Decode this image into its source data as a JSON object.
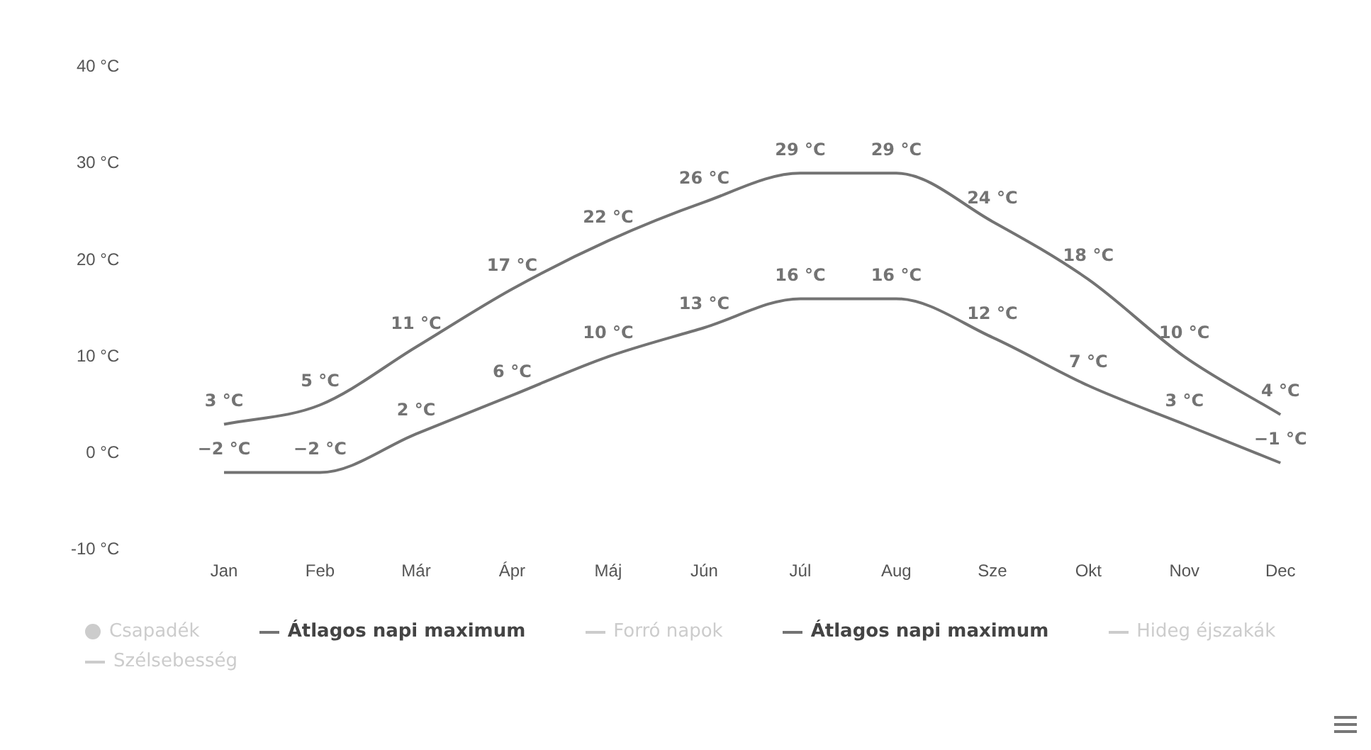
{
  "chart_data": {
    "type": "line",
    "categories": [
      "Jan",
      "Feb",
      "Már",
      "Ápr",
      "Máj",
      "Jún",
      "Júl",
      "Aug",
      "Sze",
      "Okt",
      "Nov",
      "Dec"
    ],
    "series": [
      {
        "name": "Csapadék",
        "type": "bar",
        "values": [
          null,
          null,
          null,
          null,
          null,
          null,
          null,
          null,
          null,
          null,
          null,
          null
        ]
      },
      {
        "name": "Átlagos napi maximum",
        "color": "#737373",
        "values": [
          3,
          5,
          11,
          17,
          22,
          26,
          29,
          29,
          24,
          18,
          10,
          4
        ],
        "value_labels": [
          "3 °C",
          "5 °C",
          "11 °C",
          "17 °C",
          "22 °C",
          "26 °C",
          "29 °C",
          "29 °C",
          "24 °C",
          "18 °C",
          "10 °C",
          "4 °C"
        ]
      },
      {
        "name": "Forró napok",
        "values": [
          null,
          null,
          null,
          null,
          null,
          null,
          null,
          null,
          null,
          null,
          null,
          null
        ]
      },
      {
        "name": "Átlagos napi maximum",
        "color": "#737373",
        "values": [
          -2,
          -2,
          2,
          6,
          10,
          13,
          16,
          16,
          12,
          7,
          3,
          -1
        ],
        "value_labels": [
          "−2 °C",
          "−2 °C",
          "2 °C",
          "6 °C",
          "10 °C",
          "13 °C",
          "16 °C",
          "16 °C",
          "12 °C",
          "7 °C",
          "3 °C",
          "−1 °C"
        ]
      },
      {
        "name": "Hideg éjszakák",
        "values": [
          null,
          null,
          null,
          null,
          null,
          null,
          null,
          null,
          null,
          null,
          null,
          null
        ]
      },
      {
        "name": "Szélsebesség",
        "values": [
          null,
          null,
          null,
          null,
          null,
          null,
          null,
          null,
          null,
          null,
          null,
          null
        ]
      }
    ],
    "ylim": [
      -10,
      40
    ],
    "yticks": [
      {
        "value": -10,
        "label": "-10 °C"
      },
      {
        "value": 0,
        "label": "0 °C"
      },
      {
        "value": 10,
        "label": "10 °C"
      },
      {
        "value": 20,
        "label": "20 °C"
      },
      {
        "value": 30,
        "label": "30 °C"
      },
      {
        "value": 40,
        "label": "40 °C"
      }
    ],
    "grid": false,
    "legend": "bottom",
    "marker": "none",
    "line_style": "solid"
  }
}
